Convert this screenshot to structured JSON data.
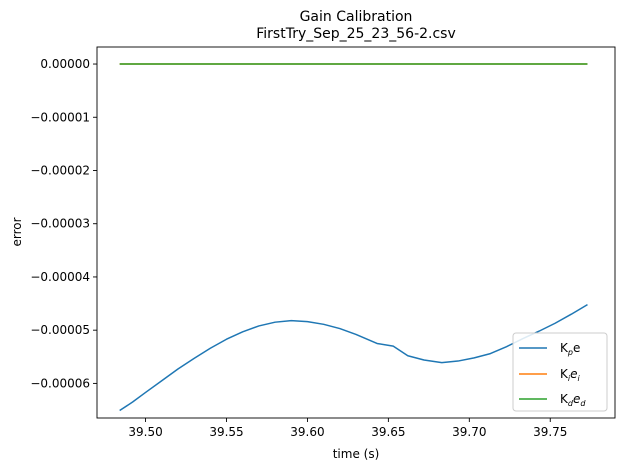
{
  "chart_data": {
    "type": "line",
    "title": "Gain Calibration",
    "subtitle": "FirstTry_Sep_25_23_56-2.csv",
    "xlabel": "time (s)",
    "ylabel": "error",
    "xlim": [
      39.47,
      39.79
    ],
    "ylim": [
      -6.65e-05,
      3.2e-06
    ],
    "x_ticks": [
      39.5,
      39.55,
      39.6,
      39.65,
      39.7,
      39.75
    ],
    "x_tick_labels": [
      "39.50",
      "39.55",
      "39.60",
      "39.65",
      "39.70",
      "39.75"
    ],
    "y_ticks": [
      0,
      -1e-05,
      -2e-05,
      -3e-05,
      -4e-05,
      -5e-05,
      -6e-05
    ],
    "y_tick_labels": [
      "0.00000",
      "−0.00001",
      "−0.00002",
      "−0.00003",
      "−0.00004",
      "−0.00005",
      "−0.00006"
    ],
    "grid": false,
    "legend_position": "lower-right",
    "series": [
      {
        "name": "K_p e",
        "label_main": "K",
        "label_sub": "p",
        "label_tail": "e",
        "tail_italic": false,
        "tail_sub": "",
        "color": "#1f77b4",
        "x": [
          39.484,
          39.492,
          39.5,
          39.51,
          39.52,
          39.53,
          39.54,
          39.55,
          39.56,
          39.57,
          39.58,
          39.59,
          39.6,
          39.61,
          39.62,
          39.63,
          39.643,
          39.653,
          39.662,
          39.672,
          39.683,
          39.693,
          39.703,
          39.713,
          39.723,
          39.733,
          39.743,
          39.753,
          39.763,
          39.773
        ],
        "y": [
          -6.51e-05,
          -6.35e-05,
          -6.17e-05,
          -5.95e-05,
          -5.73e-05,
          -5.53e-05,
          -5.34e-05,
          -5.17e-05,
          -5.03e-05,
          -4.92e-05,
          -4.85e-05,
          -4.82e-05,
          -4.84e-05,
          -4.89e-05,
          -4.97e-05,
          -5.08e-05,
          -5.25e-05,
          -5.3e-05,
          -5.48e-05,
          -5.56e-05,
          -5.61e-05,
          -5.58e-05,
          -5.52e-05,
          -5.44e-05,
          -5.31e-05,
          -5.16e-05,
          -5.02e-05,
          -4.87e-05,
          -4.7e-05,
          -4.52e-05
        ]
      },
      {
        "name": "K_i e_i",
        "label_main": "K",
        "label_sub": "i",
        "label_tail": "e",
        "tail_italic": true,
        "tail_sub": "i",
        "color": "#ff7f0e",
        "x": [
          39.484,
          39.773
        ],
        "y": [
          0,
          0
        ]
      },
      {
        "name": "K_d e_d",
        "label_main": "K",
        "label_sub": "d",
        "label_tail": "e",
        "tail_italic": true,
        "tail_sub": "d",
        "color": "#2ca02c",
        "x": [
          39.484,
          39.773
        ],
        "y": [
          0,
          0
        ]
      }
    ]
  }
}
